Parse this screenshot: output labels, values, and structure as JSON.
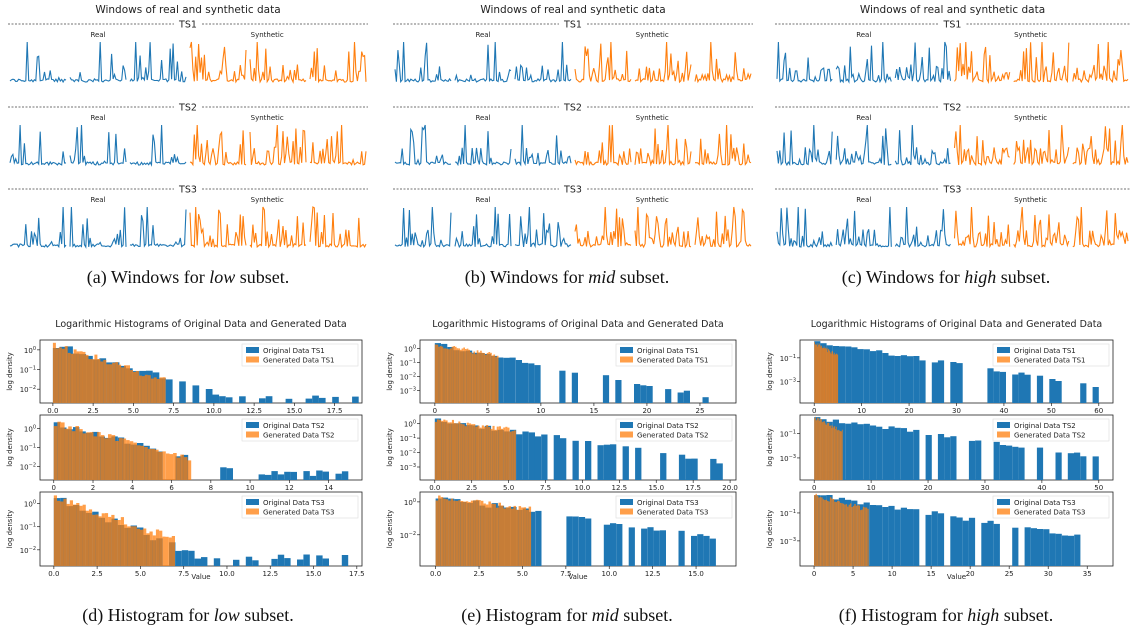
{
  "chart_data": [
    {
      "type": "line",
      "panel": "a",
      "title": "Windows of real and synthetic data",
      "caption": {
        "label": "(a) Windows for",
        "subset": "low",
        "suffix": "subset."
      },
      "rows": [
        {
          "name": "TS1",
          "real_label": "Real",
          "synth_label": "Synthetic"
        },
        {
          "name": "TS2",
          "real_label": "Real",
          "synth_label": "Synthetic"
        },
        {
          "name": "TS3",
          "real_label": "Real",
          "synth_label": "Synthetic"
        }
      ]
    },
    {
      "type": "line",
      "panel": "b",
      "title": "Windows of real and synthetic data",
      "caption": {
        "label": "(b) Windows for",
        "subset": "mid",
        "suffix": "subset."
      },
      "rows": [
        {
          "name": "TS1",
          "real_label": "Real",
          "synth_label": "Synthetic"
        },
        {
          "name": "TS2",
          "real_label": "Real",
          "synth_label": "Synthetic"
        },
        {
          "name": "TS3",
          "real_label": "Real",
          "synth_label": "Synthetic"
        }
      ]
    },
    {
      "type": "line",
      "panel": "c",
      "title": "Windows of real and synthetic data",
      "caption": {
        "label": "(c) Windows for",
        "subset": "high",
        "suffix": "subset."
      },
      "rows": [
        {
          "name": "TS1",
          "real_label": "Real",
          "synth_label": "Synthetic"
        },
        {
          "name": "TS2",
          "real_label": "Real",
          "synth_label": "Synthetic"
        },
        {
          "name": "TS3",
          "real_label": "Real",
          "synth_label": "Synthetic"
        }
      ]
    },
    {
      "type": "bar",
      "panel": "d",
      "title": "Logarithmic Histograms of Original Data and Generated Data",
      "xlabel": "Value",
      "ylabel": "log density",
      "log_y": true,
      "caption": {
        "label": "(d) Histogram for",
        "subset": "low",
        "suffix": "subset."
      },
      "subplots": [
        {
          "xlim": [
            -0.8,
            19.2
          ],
          "xticks": [
            "0.0",
            "2.5",
            "5.0",
            "7.5",
            "10.0",
            "12.5",
            "15.0",
            "17.5"
          ],
          "xtick_values": [
            0,
            2.5,
            5,
            7.5,
            10,
            12.5,
            15,
            17.5
          ],
          "yexp": [
            -2,
            -1,
            0
          ],
          "ylim_exp": [
            -2.7,
            0.5
          ],
          "series": [
            {
              "name": "Original Data TS1",
              "max": 19,
              "decay": 0.55,
              "gen": false
            },
            {
              "name": "Generated Data TS1",
              "max": 7,
              "decay": 0.6,
              "gen": true
            }
          ]
        },
        {
          "xlim": [
            -0.7,
            15.7
          ],
          "xticks": [
            "0",
            "2",
            "4",
            "6",
            "8",
            "10",
            "12",
            "14"
          ],
          "xtick_values": [
            0,
            2,
            4,
            6,
            8,
            10,
            12,
            14
          ],
          "yexp": [
            -2,
            -1,
            0
          ],
          "ylim_exp": [
            -2.7,
            0.7
          ],
          "series": [
            {
              "name": "Original Data TS2",
              "max": 15,
              "decay": 0.6,
              "gen": false
            },
            {
              "name": "Generated Data TS2",
              "max": 7,
              "decay": 0.6,
              "gen": true
            }
          ]
        },
        {
          "xlim": [
            -0.8,
            17.8
          ],
          "xticks": [
            "0.0",
            "2.5",
            "5.0",
            "7.5",
            "10.0",
            "12.5",
            "15.0",
            "17.5"
          ],
          "xtick_values": [
            0,
            2.5,
            5,
            7.5,
            10,
            12.5,
            15,
            17.5
          ],
          "yexp": [
            -2,
            -1,
            0
          ],
          "ylim_exp": [
            -2.7,
            0.5
          ],
          "series": [
            {
              "name": "Original Data TS3",
              "max": 17,
              "decay": 0.7,
              "gen": false
            },
            {
              "name": "Generated Data TS3",
              "max": 7,
              "decay": 0.6,
              "gen": true
            }
          ]
        }
      ]
    },
    {
      "type": "bar",
      "panel": "e",
      "title": "Logarithmic Histograms of Original Data and Generated Data",
      "xlabel": "Value",
      "ylabel": "log density",
      "log_y": true,
      "caption": {
        "label": "(e) Histogram for",
        "subset": "mid",
        "suffix": "subset."
      },
      "subplots": [
        {
          "xlim": [
            -1.4,
            28.4
          ],
          "xticks": [
            "0",
            "5",
            "10",
            "15",
            "20",
            "25"
          ],
          "xtick_values": [
            0,
            5,
            10,
            15,
            20,
            25
          ],
          "yexp": [
            -3,
            -2,
            -1,
            0
          ],
          "ylim_exp": [
            -3.9,
            0.6
          ],
          "series": [
            {
              "name": "Original Data TS1",
              "max": 27,
              "decay": 0.33,
              "gen": false
            },
            {
              "name": "Generated Data TS1",
              "max": 6,
              "decay": 0.3,
              "gen": true
            }
          ]
        },
        {
          "xlim": [
            -1.0,
            20.4
          ],
          "xticks": [
            "0.0",
            "2.5",
            "5.0",
            "7.5",
            "10.0",
            "12.5",
            "15.0",
            "17.5",
            "20.0"
          ],
          "xtick_values": [
            0,
            2.5,
            5,
            7.5,
            10,
            12.5,
            15,
            17.5,
            20
          ],
          "yexp": [
            -3,
            -2,
            -1,
            0
          ],
          "ylim_exp": [
            -3.9,
            0.6
          ],
          "series": [
            {
              "name": "Original Data TS2",
              "max": 19.5,
              "decay": 0.35,
              "gen": false
            },
            {
              "name": "Generated Data TS2",
              "max": 5.5,
              "decay": 0.3,
              "gen": true
            }
          ]
        },
        {
          "xlim": [
            -0.9,
            17.3
          ],
          "xticks": [
            "0.0",
            "2.5",
            "5.0",
            "7.5",
            "10.0",
            "12.5",
            "15.0"
          ],
          "xtick_values": [
            0,
            2.5,
            5,
            7.5,
            10,
            12.5,
            15
          ],
          "yexp": [
            -2,
            0
          ],
          "ylim_exp": [
            -3.9,
            0.6
          ],
          "series": [
            {
              "name": "Original Data TS3",
              "max": 16.5,
              "decay": 0.35,
              "gen": false
            },
            {
              "name": "Generated Data TS3",
              "max": 5.5,
              "decay": 0.3,
              "gen": true
            }
          ]
        }
      ]
    },
    {
      "type": "bar",
      "panel": "f",
      "title": "Logarithmic Histograms of Original Data and Generated Data",
      "xlabel": "Value",
      "ylabel": "log density",
      "log_y": true,
      "caption": {
        "label": "(f) Histogram for",
        "subset": "high",
        "suffix": "subset."
      },
      "subplots": [
        {
          "xlim": [
            -3.0,
            63.0
          ],
          "xticks": [
            "0",
            "10",
            "20",
            "30",
            "40",
            "50",
            "60"
          ],
          "xtick_values": [
            0,
            10,
            20,
            30,
            40,
            50,
            60
          ],
          "yexp": [
            -3,
            -1
          ],
          "ylim_exp": [
            -4.8,
            0.5
          ],
          "series": [
            {
              "name": "Original Data TS1",
              "max": 60,
              "decay": 0.14,
              "gen": false
            },
            {
              "name": "Generated Data TS1",
              "max": 5,
              "decay": 0.5,
              "gen": true
            }
          ]
        },
        {
          "xlim": [
            -2.5,
            52.5
          ],
          "xticks": [
            "0",
            "10",
            "20",
            "30",
            "40",
            "50"
          ],
          "xtick_values": [
            0,
            10,
            20,
            30,
            40,
            50
          ],
          "yexp": [
            -3,
            -1
          ],
          "ylim_exp": [
            -4.8,
            0.5
          ],
          "series": [
            {
              "name": "Original Data TS2",
              "max": 50,
              "decay": 0.15,
              "gen": false
            },
            {
              "name": "Generated Data TS2",
              "max": 5,
              "decay": 0.5,
              "gen": true
            }
          ]
        },
        {
          "xlim": [
            -1.8,
            38.3
          ],
          "xticks": [
            "0",
            "5",
            "10",
            "15",
            "20",
            "25",
            "30",
            "35"
          ],
          "xtick_values": [
            0,
            5,
            10,
            15,
            20,
            25,
            30,
            35
          ],
          "yexp": [
            -3,
            -1
          ],
          "ylim_exp": [
            -4.8,
            0.5
          ],
          "series": [
            {
              "name": "Original Data TS3",
              "max": 36.5,
              "decay": 0.2,
              "gen": false
            },
            {
              "name": "Generated Data TS3",
              "max": 7,
              "decay": 0.35,
              "gen": true
            }
          ]
        }
      ]
    }
  ],
  "colors": {
    "real": "#1f77b4",
    "synthetic": "#ff7f0e",
    "generated_bar": "#ff7f0e"
  }
}
